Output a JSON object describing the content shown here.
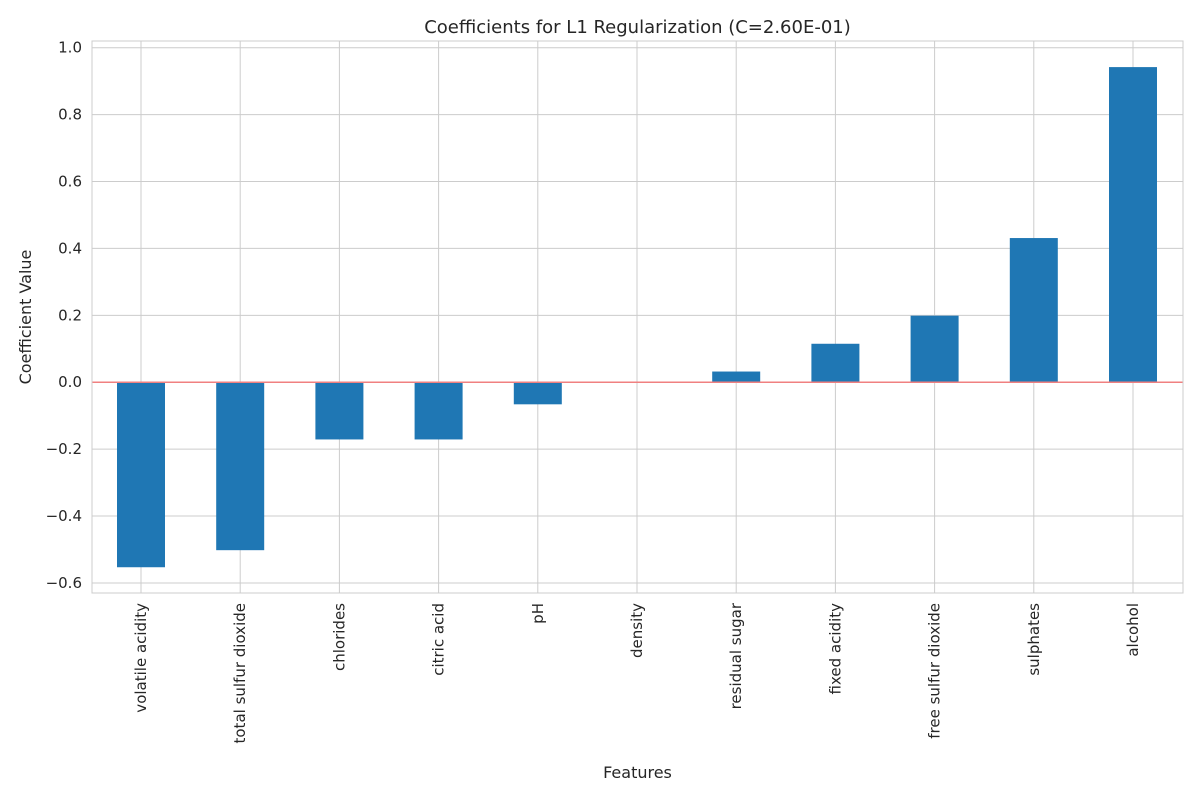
{
  "chart_data": {
    "type": "bar",
    "title": "Coefficients for L1 Regularization (C=2.60E-01)",
    "xlabel": "Features",
    "ylabel": "Coefficient Value",
    "categories": [
      "volatile acidity",
      "total sulfur dioxide",
      "chlorides",
      "citric acid",
      "pH",
      "density",
      "residual sugar",
      "fixed acidity",
      "free sulfur dioxide",
      "sulphates",
      "alcohol"
    ],
    "values": [
      -0.553,
      -0.502,
      -0.171,
      -0.171,
      -0.066,
      0.0,
      0.032,
      0.115,
      0.199,
      0.431,
      0.942
    ],
    "ylim": [
      -0.63,
      1.02
    ],
    "yticks": [
      -0.6,
      -0.4,
      -0.2,
      0.0,
      0.2,
      0.4,
      0.6,
      0.8,
      1.0
    ],
    "ytick_labels": [
      "−0.6",
      "−0.4",
      "−0.2",
      "0.0",
      "0.2",
      "0.4",
      "0.6",
      "0.8",
      "1.0"
    ],
    "grid": true,
    "zero_line": true,
    "colors": {
      "bar": "#1f77b4",
      "zero_line": "#f08080",
      "grid": "#cccccc",
      "spine": "#cccccc"
    }
  }
}
